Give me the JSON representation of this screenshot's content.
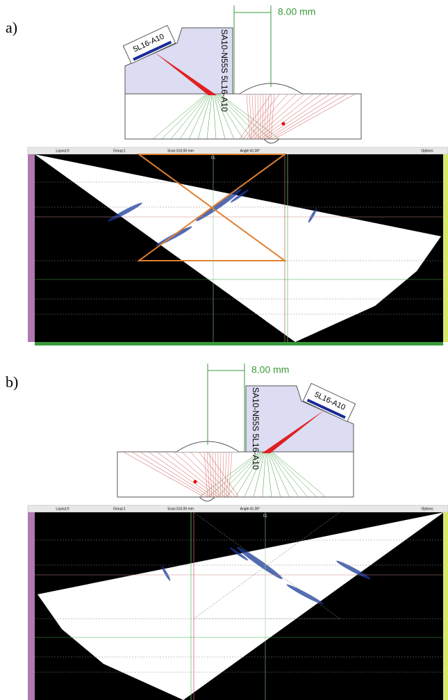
{
  "panels": [
    {
      "label": "a)",
      "dimension": "8.00 mm",
      "probe": "5L16-A10",
      "wedge": "SA10-N55S 5L16-A10",
      "toolbar": [
        "Layout:0",
        "Group:1",
        "Scan:310.00 mm",
        "Angle:41.00°",
        "Options"
      ],
      "centerline": "CL"
    },
    {
      "label": "b)",
      "dimension": "8.00 mm",
      "probe": "5L16-A10",
      "wedge": "SA10-N55S 5L16-A10",
      "toolbar": [
        "Layout:0",
        "Group:1",
        "Scan:310.00 mm",
        "Angle:41.00°",
        "Options"
      ],
      "centerline": "CL"
    }
  ]
}
